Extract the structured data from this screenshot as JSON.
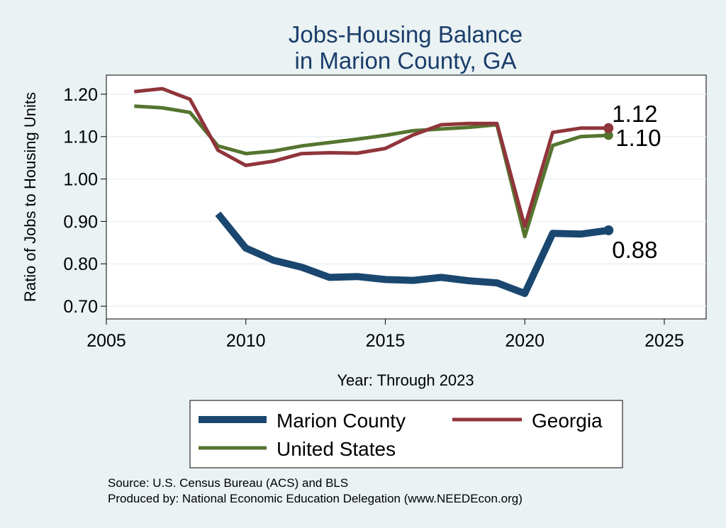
{
  "chart_data": {
    "type": "line",
    "title": [
      "Jobs-Housing Balance",
      "in Marion County, GA"
    ],
    "xlabel": "Year: Through 2023",
    "ylabel": "Ratio of Jobs to Housing Units",
    "xlim": [
      2005,
      2026.5
    ],
    "ylim": [
      0.67,
      1.245
    ],
    "xticks": [
      2005,
      2010,
      2015,
      2020,
      2025
    ],
    "yticks": [
      0.7,
      0.8,
      0.9,
      1.0,
      1.1,
      1.2
    ],
    "ytick_labels": [
      "0.70",
      "0.80",
      "0.90",
      "1.00",
      "1.10",
      "1.20"
    ],
    "grid": true,
    "series": [
      {
        "name": "Marion County",
        "color": "#1a476f",
        "x": [
          2009,
          2010,
          2011,
          2012,
          2013,
          2014,
          2015,
          2016,
          2017,
          2018,
          2019,
          2020,
          2021,
          2022,
          2023
        ],
        "values": [
          0.918,
          0.837,
          0.808,
          0.792,
          0.768,
          0.77,
          0.763,
          0.761,
          0.768,
          0.76,
          0.755,
          0.73,
          0.872,
          0.87,
          0.879
        ],
        "end_label": "0.88"
      },
      {
        "name": "Georgia",
        "color": "#90353b",
        "x": [
          2006,
          2007,
          2008,
          2009,
          2010,
          2011,
          2012,
          2013,
          2014,
          2015,
          2016,
          2017,
          2018,
          2019,
          2020,
          2021,
          2022,
          2023
        ],
        "values": [
          1.206,
          1.213,
          1.188,
          1.068,
          1.032,
          1.042,
          1.06,
          1.062,
          1.061,
          1.072,
          1.104,
          1.128,
          1.131,
          1.131,
          0.888,
          1.11,
          1.12,
          1.12
        ],
        "end_label": "1.12"
      },
      {
        "name": "United States",
        "color": "#55752f",
        "x": [
          2006,
          2007,
          2008,
          2009,
          2010,
          2011,
          2012,
          2013,
          2014,
          2015,
          2016,
          2017,
          2018,
          2019,
          2020,
          2021,
          2022,
          2023
        ],
        "values": [
          1.172,
          1.168,
          1.157,
          1.078,
          1.06,
          1.066,
          1.078,
          1.086,
          1.094,
          1.103,
          1.114,
          1.118,
          1.122,
          1.128,
          0.864,
          1.079,
          1.1,
          1.103
        ],
        "end_label": "1.10"
      }
    ],
    "legend": {
      "placement": "bottom",
      "entries": [
        "Marion County",
        "Georgia",
        "United States"
      ]
    }
  },
  "source": {
    "line1": "Source: U.S. Census Bureau (ACS) and BLS",
    "line2": "Produced by: National Economic Education Delegation (www.NEEDEcon.org)"
  }
}
